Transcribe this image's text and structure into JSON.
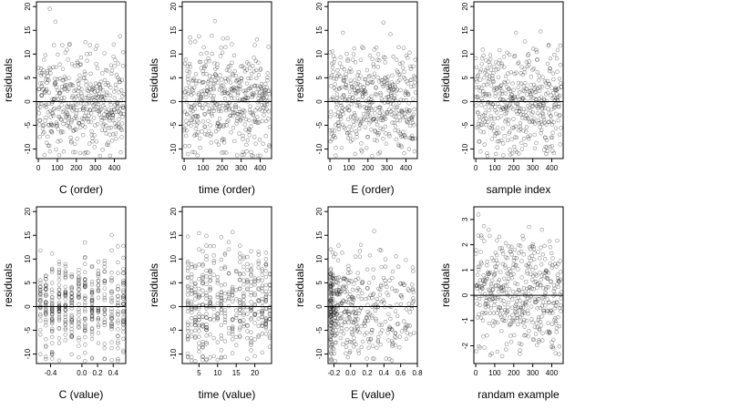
{
  "chart_data": [
    {
      "type": "scatter",
      "xlabel": "C (order)",
      "ylabel": "residuals",
      "xlim": [
        -10,
        460
      ],
      "ylim": [
        -12,
        21
      ],
      "xticks": [
        0,
        100,
        200,
        300,
        400
      ],
      "yticks": [
        -10,
        -5,
        0,
        5,
        10,
        15,
        20
      ],
      "hline": 0,
      "n_points": 450,
      "x_kind": "index",
      "seed": 11
    },
    {
      "type": "scatter",
      "xlabel": "time (order)",
      "ylabel": "residuals",
      "xlim": [
        -10,
        460
      ],
      "ylim": [
        -12,
        21
      ],
      "xticks": [
        0,
        100,
        200,
        300,
        400
      ],
      "yticks": [
        -10,
        -5,
        0,
        5,
        10,
        15,
        20
      ],
      "hline": 0,
      "n_points": 450,
      "x_kind": "index",
      "seed": 23
    },
    {
      "type": "scatter",
      "xlabel": "E (order)",
      "ylabel": "residuals",
      "xlim": [
        -10,
        460
      ],
      "ylim": [
        -12,
        21
      ],
      "xticks": [
        0,
        100,
        200,
        300,
        400
      ],
      "yticks": [
        -10,
        -5,
        0,
        5,
        10,
        15,
        20
      ],
      "hline": 0,
      "n_points": 450,
      "x_kind": "index",
      "seed": 37
    },
    {
      "type": "scatter",
      "xlabel": "sample index",
      "ylabel": "residuals",
      "xlim": [
        -10,
        460
      ],
      "ylim": [
        -12,
        21
      ],
      "xticks": [
        0,
        100,
        200,
        300,
        400
      ],
      "yticks": [
        -10,
        -5,
        0,
        5,
        10,
        15,
        20
      ],
      "hline": 0,
      "n_points": 450,
      "x_kind": "index",
      "seed": 41
    },
    {
      "type": "scatter",
      "xlabel": "C (value)",
      "ylabel": "residuals",
      "xlim": [
        -0.58,
        0.56
      ],
      "ylim": [
        -12,
        21
      ],
      "xticks": [
        -0.4,
        0.0,
        0.2,
        0.4
      ],
      "xtick_labels": [
        "-0.4",
        "0.0",
        "0.2",
        "0.4"
      ],
      "yticks": [
        -10,
        -5,
        0,
        5,
        10,
        15,
        20
      ],
      "hline": 0,
      "n_points": 450,
      "x_kind": "discrete",
      "x_levels": [
        -0.53,
        -0.46,
        -0.38,
        -0.29,
        -0.21,
        -0.13,
        -0.04,
        0.04,
        0.13,
        0.21,
        0.29,
        0.38,
        0.46,
        0.53
      ],
      "seed": 53
    },
    {
      "type": "scatter",
      "xlabel": "time (value)",
      "ylabel": "residuals",
      "xlim": [
        0.5,
        24.5
      ],
      "ylim": [
        -12,
        21
      ],
      "xticks": [
        5,
        10,
        15,
        20
      ],
      "yticks": [
        -10,
        -5,
        0,
        5,
        10,
        15,
        20
      ],
      "hline": 0,
      "n_points": 450,
      "x_kind": "discrete",
      "x_levels": [
        2,
        3,
        4,
        5,
        6,
        7,
        8,
        9,
        10,
        11,
        12,
        13,
        14,
        15,
        16,
        17,
        18,
        19,
        20,
        21,
        22,
        23,
        24
      ],
      "seed": 67
    },
    {
      "type": "scatter",
      "xlabel": "E (value)",
      "ylabel": "residuals",
      "xlim": [
        -0.27,
        0.8
      ],
      "ylim": [
        -12,
        21
      ],
      "xticks": [
        -0.2,
        0.0,
        0.2,
        0.4,
        0.6,
        0.8
      ],
      "xtick_labels": [
        "-0.2",
        "0.0",
        "0.2",
        "0.4",
        "0.6",
        "0.8"
      ],
      "yticks": [
        -10,
        -5,
        0,
        5,
        10,
        15,
        20
      ],
      "hline": 0,
      "n_points": 450,
      "x_kind": "skewed",
      "seed": 79
    },
    {
      "type": "scatter",
      "xlabel": "randam example",
      "ylabel": "residuals",
      "xlim": [
        -10,
        460
      ],
      "ylim": [
        -2.7,
        3.5
      ],
      "xticks": [
        0,
        100,
        200,
        300,
        400
      ],
      "yticks": [
        -2,
        -1,
        0,
        1,
        2,
        3
      ],
      "hline": 0,
      "n_points": 450,
      "x_kind": "index",
      "y_scale": 1,
      "seed": 97
    }
  ]
}
